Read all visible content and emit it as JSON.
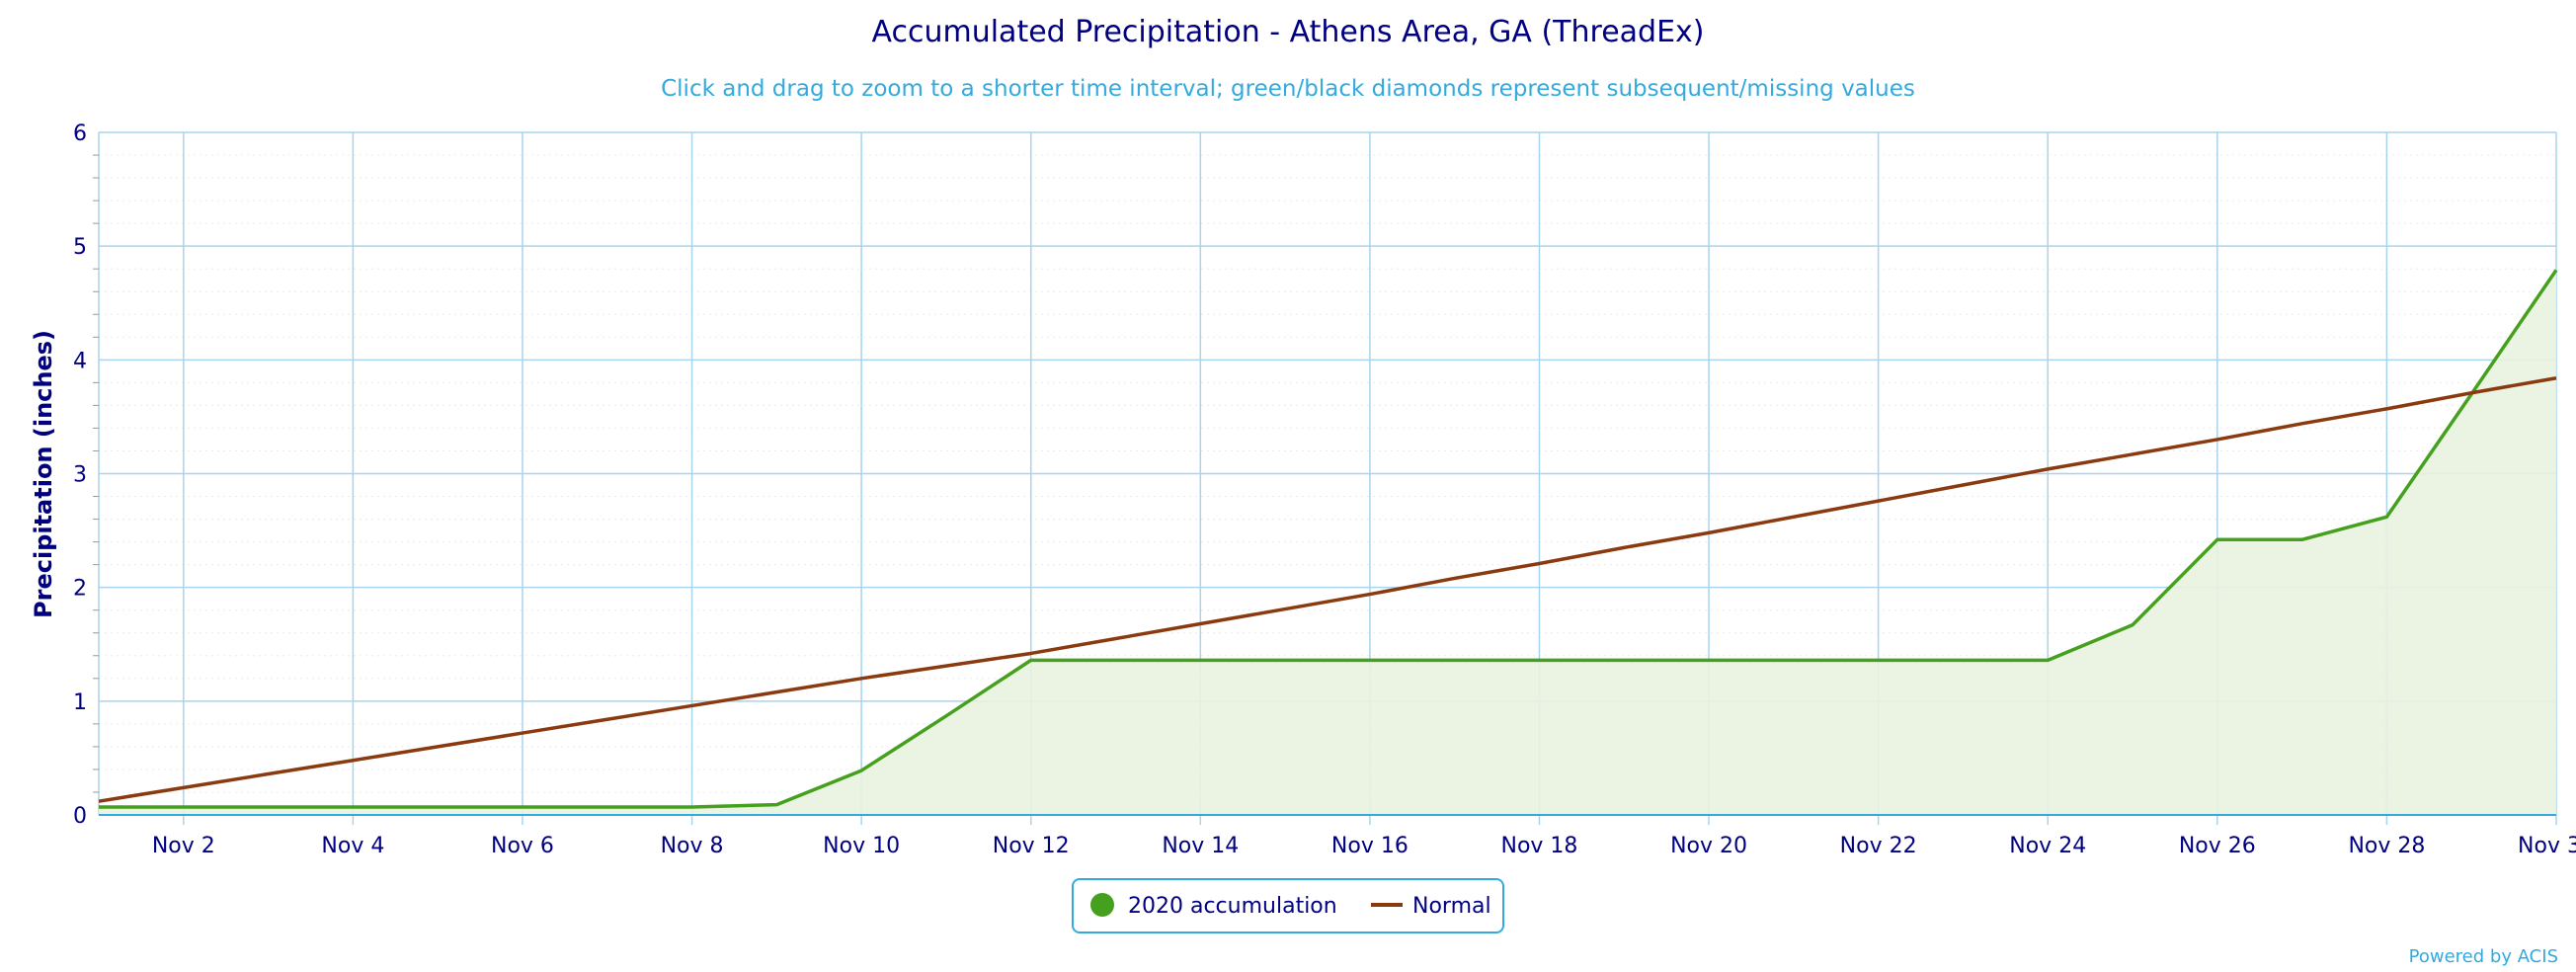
{
  "chart_data": {
    "type": "line",
    "title": "Accumulated Precipitation - Athens Area, GA (ThreadEx)",
    "subtitle": "Click and drag to zoom to a shorter time interval; green/black diamonds represent subsequent/missing values",
    "ylabel": "Precipitation (inches)",
    "xlabel": "",
    "ylim": [
      0,
      6
    ],
    "yticks": [
      "0",
      "1",
      "2",
      "3",
      "4",
      "5",
      "6"
    ],
    "x_days": [
      1,
      30
    ],
    "x_tick_days": [
      2,
      4,
      6,
      8,
      10,
      12,
      14,
      16,
      18,
      20,
      22,
      24,
      26,
      28,
      30
    ],
    "x_tick_labels": [
      "Nov 2",
      "Nov 4",
      "Nov 6",
      "Nov 8",
      "Nov 10",
      "Nov 12",
      "Nov 14",
      "Nov 16",
      "Nov 18",
      "Nov 20",
      "Nov 22",
      "Nov 24",
      "Nov 26",
      "Nov 28",
      "Nov 30"
    ],
    "grid": true,
    "legend_position": "bottom-center",
    "series": [
      {
        "name": "2020 accumulation",
        "color": "#44a01d",
        "fill": "#e9f2e0",
        "x": [
          1,
          2,
          3,
          4,
          5,
          6,
          7,
          8,
          9,
          10,
          11,
          12,
          13,
          14,
          15,
          16,
          17,
          18,
          19,
          20,
          21,
          22,
          23,
          24,
          25,
          26,
          27,
          28,
          29,
          30
        ],
        "values": [
          0.07,
          0.07,
          0.07,
          0.07,
          0.07,
          0.07,
          0.07,
          0.07,
          0.09,
          0.39,
          0.87,
          1.36,
          1.36,
          1.36,
          1.36,
          1.36,
          1.36,
          1.36,
          1.36,
          1.36,
          1.36,
          1.36,
          1.36,
          1.36,
          1.67,
          2.42,
          2.42,
          2.62,
          3.7,
          4.79
        ]
      },
      {
        "name": "Normal",
        "color": "#8b3a10",
        "x": [
          1,
          2,
          3,
          4,
          5,
          6,
          7,
          8,
          9,
          10,
          11,
          12,
          13,
          14,
          15,
          16,
          17,
          18,
          19,
          20,
          21,
          22,
          23,
          24,
          25,
          26,
          27,
          28,
          29,
          30
        ],
        "values": [
          0.12,
          0.24,
          0.36,
          0.48,
          0.6,
          0.72,
          0.84,
          0.96,
          1.08,
          1.2,
          1.31,
          1.42,
          1.55,
          1.68,
          1.81,
          1.94,
          2.08,
          2.21,
          2.35,
          2.48,
          2.62,
          2.76,
          2.9,
          3.04,
          3.17,
          3.3,
          3.44,
          3.57,
          3.71,
          3.84
        ]
      }
    ]
  },
  "credits": "Powered by ACIS"
}
